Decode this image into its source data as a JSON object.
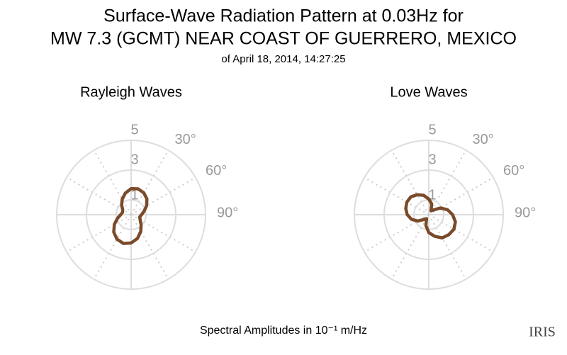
{
  "title": [
    "Surface-Wave Radiation Pattern at 0.03Hz for",
    "MW 7.3 (GCMT) NEAR COAST OF GUERRERO, MEXICO"
  ],
  "subtitle": "of April 18, 2014, 14:27:25",
  "caption": "Spectral Amplitudes in 10⁻¹ m/Hz",
  "logo": "IRIS",
  "chart_data": [
    {
      "type": "polar",
      "title": "Rayleigh Waves",
      "color": "#7a4a2a",
      "theta": [
        0,
        15,
        30,
        45,
        60,
        75,
        90,
        105,
        120,
        135,
        150,
        165,
        180,
        195,
        210,
        225,
        240,
        255,
        270,
        285,
        300,
        315,
        330,
        345
      ],
      "values": [
        1.75,
        1.8,
        1.7,
        1.5,
        1.2,
        0.9,
        0.7,
        0.6,
        0.7,
        0.95,
        1.3,
        1.65,
        1.9,
        2.0,
        1.9,
        1.65,
        1.3,
        0.95,
        0.7,
        0.6,
        0.65,
        0.9,
        1.2,
        1.5
      ],
      "rlim": [
        0,
        5
      ],
      "rticks": [
        1,
        3,
        5
      ],
      "thetaticks": [
        {
          "value": 30,
          "label": "30°"
        },
        {
          "value": 60,
          "label": "60°"
        },
        {
          "value": 90,
          "label": "90°"
        }
      ],
      "grid": true
    },
    {
      "type": "polar",
      "title": "Love Waves",
      "color": "#7a4a2a",
      "theta": [
        0,
        15,
        30,
        45,
        60,
        75,
        90,
        105,
        120,
        135,
        150,
        165,
        180,
        195,
        210,
        225,
        240,
        255,
        270,
        285,
        300,
        315,
        330,
        345
      ],
      "values": [
        1.05,
        0.75,
        0.3,
        0.45,
        0.9,
        1.3,
        1.6,
        1.85,
        1.95,
        1.9,
        1.8,
        1.5,
        1.2,
        0.75,
        0.3,
        0.45,
        0.85,
        1.2,
        1.45,
        1.6,
        1.7,
        1.7,
        1.55,
        1.35
      ],
      "rlim": [
        0,
        5
      ],
      "rticks": [
        1,
        3,
        5
      ],
      "thetaticks": [
        {
          "value": 30,
          "label": "30°"
        },
        {
          "value": 60,
          "label": "60°"
        },
        {
          "value": 90,
          "label": "90°"
        }
      ],
      "grid": true
    }
  ]
}
